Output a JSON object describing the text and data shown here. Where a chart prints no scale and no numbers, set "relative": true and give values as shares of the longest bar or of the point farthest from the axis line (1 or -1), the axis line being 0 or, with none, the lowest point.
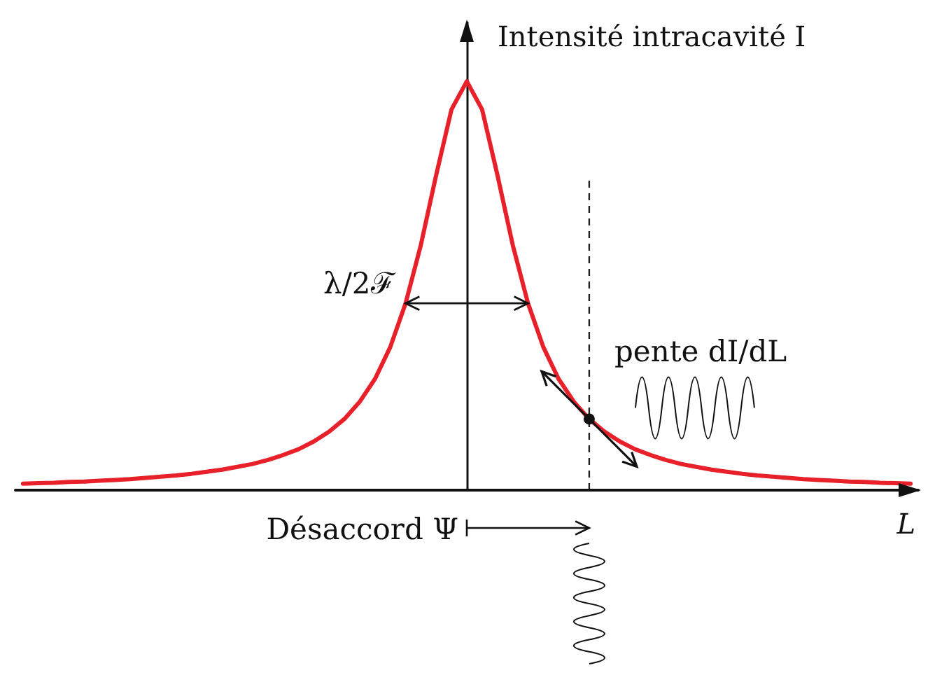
{
  "chart_data": {
    "type": "line",
    "relative": true,
    "xlabel": "L",
    "ylabel": "Intensité intracavité I",
    "categories": [
      null,
      null,
      null,
      null,
      null,
      null,
      null,
      null,
      null,
      null,
      null,
      null,
      null,
      null,
      null,
      null,
      null,
      null,
      null,
      null,
      null,
      null,
      null,
      null,
      null,
      null,
      null,
      null,
      null,
      null,
      null,
      null,
      null,
      null,
      null,
      null,
      null,
      null,
      null,
      null,
      null,
      null,
      null,
      null,
      null,
      null,
      null,
      null,
      null,
      null,
      null,
      null,
      null,
      null,
      null,
      null,
      null,
      null,
      null
    ],
    "series": [
      {
        "color": "#e8202a",
        "values": [
          0.016,
          0.017,
          0.018,
          0.02,
          0.021,
          0.023,
          0.025,
          0.027,
          0.03,
          0.033,
          0.036,
          0.04,
          0.045,
          0.05,
          0.057,
          0.064,
          0.074,
          0.086,
          0.1,
          0.119,
          0.143,
          0.174,
          0.216,
          0.272,
          0.35,
          0.457,
          0.6,
          0.771,
          0.931,
          1,
          0.931,
          0.771,
          0.6,
          0.457,
          0.35,
          0.272,
          0.216,
          0.174,
          0.143,
          0.119,
          0.1,
          0.086,
          0.074,
          0.064,
          0.057,
          0.05,
          0.045,
          0.04,
          0.036,
          0.033,
          0.03,
          0.027,
          0.025,
          0.023,
          0.021,
          0.02,
          0.018,
          0.017,
          0.016
        ]
      }
    ],
    "marker": "none",
    "line_style": "solid",
    "annotations": [
      "λ/2ℱ",
      "pente dI/dL",
      "Désaccord Ψ"
    ]
  }
}
